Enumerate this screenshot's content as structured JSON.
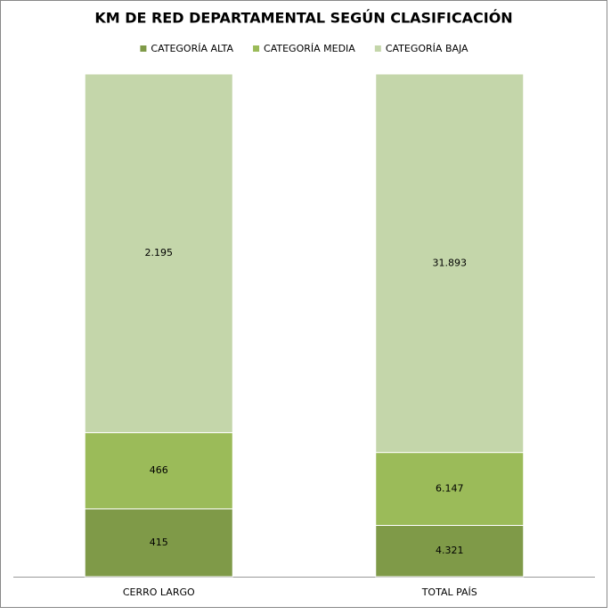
{
  "chart_data": {
    "type": "bar",
    "stacking": "percent",
    "title": "KM DE RED DEPARTAMENTAL SEGÚN CLASIFICACIÓN",
    "categories": [
      "CERRO LARGO",
      "TOTAL PAÍS"
    ],
    "series": [
      {
        "name": "CATEGORÍA ALTA",
        "color": "#7f9a48",
        "values": [
          415,
          4321
        ],
        "value_labels": [
          "415",
          "4.321"
        ]
      },
      {
        "name": "CATEGORÍA MEDIA",
        "color": "#9bbb59",
        "values": [
          466,
          6147
        ],
        "value_labels": [
          "466",
          "6.147"
        ]
      },
      {
        "name": "CATEGORÍA BAJA",
        "color": "#c4d6aa",
        "values": [
          2195,
          31893
        ],
        "value_labels": [
          "2.195",
          "31.893"
        ]
      }
    ],
    "legend": "top",
    "grid": false
  }
}
